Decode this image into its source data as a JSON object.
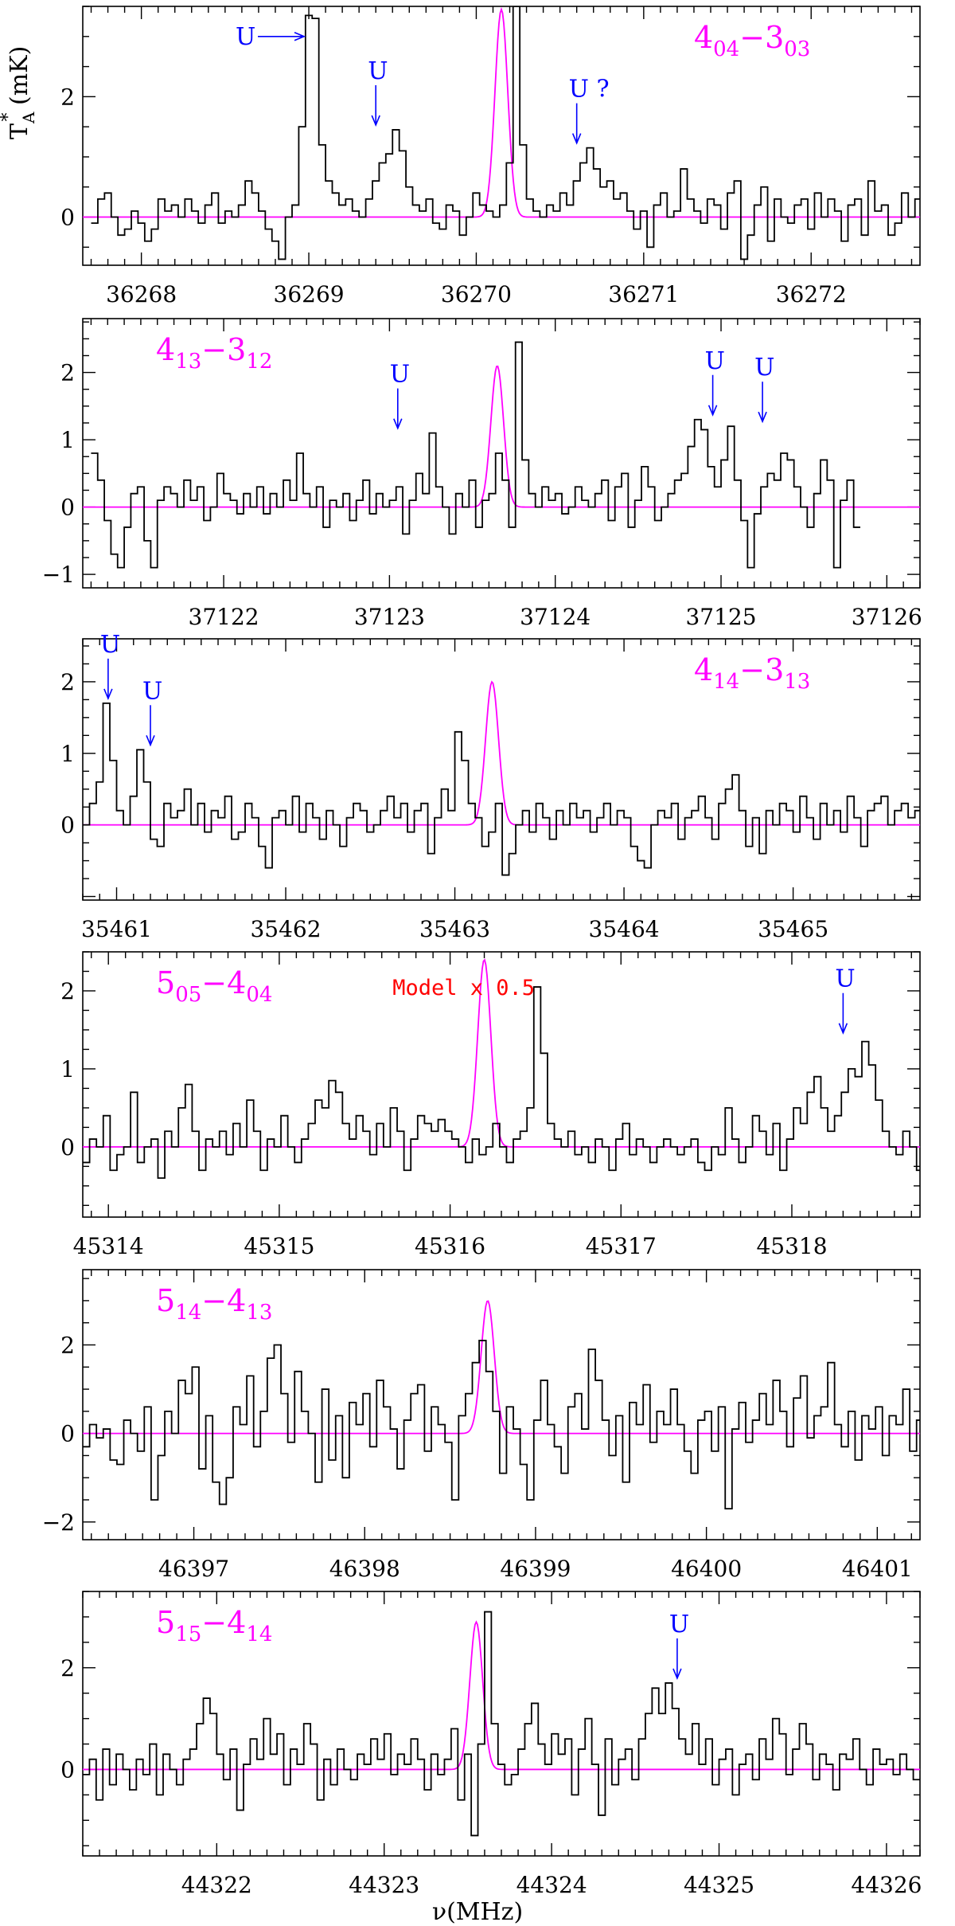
{
  "figure": {
    "ylabel_main": "T",
    "ylabel_sup": "*",
    "ylabel_sub": "A",
    "ylabel_unit": " (mK)",
    "xlabel": "ν(MHz)"
  },
  "colors": {
    "data": "#000000",
    "model": "#ff00ff",
    "annotation": "#0000ff",
    "note": "#ff0000",
    "frame": "#000000"
  },
  "chart_data": [
    {
      "type": "line",
      "transition": {
        "upper": "4",
        "upper_sub": "04",
        "lower": "3",
        "lower_sub": "03"
      },
      "xlim": [
        36267.65,
        36272.65
      ],
      "ylim": [
        -0.8,
        3.5
      ],
      "xticks": [
        36268,
        36269,
        36270,
        36271,
        36272
      ],
      "xtick_labels": [
        "36268",
        "36269",
        "36270",
        "36271",
        "36272"
      ],
      "yticks": [
        0,
        2
      ],
      "ytick_labels": [
        "0",
        "2"
      ],
      "model": {
        "center": 36270.15,
        "amplitude": 3.45,
        "fwhm": 0.09
      },
      "spectrum": {
        "x0": 36267.7,
        "dx": 0.04,
        "values": [
          -0.1,
          0.3,
          0.4,
          0.0,
          -0.3,
          -0.2,
          0.1,
          -0.1,
          -0.4,
          -0.2,
          0.3,
          0.1,
          0.2,
          0.0,
          0.3,
          0.1,
          -0.1,
          0.2,
          0.4,
          -0.1,
          0.1,
          0.0,
          0.2,
          0.6,
          0.4,
          0.1,
          -0.2,
          -0.4,
          -0.7,
          0.0,
          0.2,
          1.5,
          3.35,
          3.3,
          1.2,
          0.6,
          0.4,
          0.2,
          0.3,
          0.1,
          0.0,
          0.3,
          0.6,
          0.9,
          1.05,
          1.45,
          1.1,
          0.5,
          0.2,
          0.1,
          0.3,
          -0.1,
          -0.2,
          0.2,
          0.1,
          -0.3,
          0.0,
          0.4,
          0.2,
          0.1,
          0.0,
          0.2,
          0.9,
          3.5,
          1.2,
          0.3,
          0.1,
          0.0,
          0.2,
          0.1,
          0.4,
          0.2,
          0.6,
          0.9,
          1.15,
          0.8,
          0.5,
          0.6,
          0.3,
          0.4,
          0.1,
          -0.2,
          0.1,
          -0.5,
          0.2,
          0.4,
          0.0,
          0.1,
          0.8,
          0.3,
          0.1,
          -0.1,
          0.3,
          0.2,
          -0.2,
          0.4,
          0.6,
          -0.7,
          -0.3,
          0.2,
          0.5,
          -0.4,
          0.3,
          0.0,
          -0.1,
          0.2,
          0.3,
          -0.2,
          0.4,
          0.0,
          0.3,
          0.1,
          -0.4,
          0.2,
          0.3,
          -0.3,
          0.6,
          0.1,
          0.2,
          -0.3,
          -0.1,
          0.4,
          0.0,
          0.3,
          -0.2,
          0.1,
          0.5,
          0.2,
          -0.3,
          0.2
        ]
      },
      "annotations": [
        {
          "text": "U",
          "x": 36269.0,
          "y": 3.0,
          "arrow": "right"
        },
        {
          "text": "U",
          "x": 36269.4,
          "y": 1.45,
          "arrow": "down"
        },
        {
          "text": "U ?",
          "x": 36270.6,
          "y": 1.15,
          "arrow": "down"
        }
      ],
      "note": null,
      "label_position": "top-right"
    },
    {
      "type": "line",
      "transition": {
        "upper": "4",
        "upper_sub": "13",
        "lower": "3",
        "lower_sub": "12"
      },
      "xlim": [
        37121.15,
        37126.2
      ],
      "ylim": [
        -1.2,
        2.8
      ],
      "xticks": [
        37122,
        37123,
        37124,
        37125,
        37126
      ],
      "xtick_labels": [
        "37122",
        "37123",
        "37124",
        "37125",
        "37126"
      ],
      "yticks": [
        -1,
        0,
        1,
        2
      ],
      "ytick_labels": [
        "−1",
        "0",
        "1",
        "2"
      ],
      "model": {
        "center": 37123.65,
        "amplitude": 2.1,
        "fwhm": 0.09
      },
      "spectrum": {
        "x0": 37121.2,
        "dx": 0.04,
        "values": [
          0.8,
          0.4,
          -0.2,
          -0.7,
          -0.9,
          -0.3,
          0.2,
          0.3,
          -0.5,
          -0.9,
          0.1,
          0.3,
          0.2,
          0.0,
          0.4,
          0.1,
          0.3,
          -0.2,
          0.0,
          0.5,
          0.2,
          0.1,
          -0.1,
          0.2,
          0.0,
          0.3,
          -0.1,
          0.2,
          0.0,
          0.4,
          0.1,
          0.8,
          0.2,
          0.0,
          0.3,
          -0.3,
          0.1,
          0.0,
          0.2,
          -0.2,
          0.1,
          0.4,
          -0.1,
          0.2,
          0.0,
          0.1,
          0.3,
          -0.4,
          0.1,
          0.5,
          0.2,
          1.1,
          0.3,
          0.0,
          -0.4,
          0.2,
          0.0,
          0.4,
          -0.3,
          0.1,
          0.2,
          0.8,
          0.4,
          -0.3,
          2.45,
          0.7,
          0.2,
          0.0,
          0.3,
          0.1,
          0.2,
          -0.1,
          0.0,
          0.3,
          0.1,
          0.0,
          0.2,
          0.4,
          -0.2,
          0.3,
          0.5,
          -0.3,
          0.1,
          0.6,
          0.3,
          -0.2,
          0.0,
          0.2,
          0.4,
          0.5,
          0.9,
          1.3,
          1.15,
          0.6,
          0.3,
          0.7,
          1.2,
          0.4,
          -0.2,
          -0.9,
          -0.1,
          0.3,
          0.5,
          0.4,
          0.8,
          0.7,
          0.3,
          0.0,
          -0.3,
          0.2,
          0.7,
          0.4,
          -0.9,
          0.1,
          0.4,
          -0.3
        ]
      },
      "annotations": [
        {
          "text": "U",
          "x": 37123.05,
          "y": 1.1,
          "arrow": "down"
        },
        {
          "text": "U",
          "x": 37124.95,
          "y": 1.3,
          "arrow": "down"
        },
        {
          "text": "U",
          "x": 37125.25,
          "y": 1.2,
          "arrow": "down"
        }
      ],
      "note": null,
      "label_position": "top-left"
    },
    {
      "type": "line",
      "transition": {
        "upper": "4",
        "upper_sub": "14",
        "lower": "3",
        "lower_sub": "13"
      },
      "xlim": [
        35460.8,
        35465.75
      ],
      "ylim": [
        -1.05,
        2.6
      ],
      "xticks": [
        35461,
        35462,
        35463,
        35464,
        35465
      ],
      "xtick_labels": [
        "35461",
        "35462",
        "35463",
        "35464",
        "35465"
      ],
      "yticks": [
        0,
        1,
        2
      ],
      "ytick_labels": [
        "0",
        "1",
        "2"
      ],
      "model": {
        "center": 35463.22,
        "amplitude": 2.0,
        "fwhm": 0.09
      },
      "spectrum": {
        "x0": 35460.8,
        "dx": 0.04,
        "values": [
          0.0,
          0.3,
          0.6,
          1.7,
          0.9,
          0.2,
          0.0,
          0.4,
          1.05,
          0.6,
          -0.2,
          -0.3,
          0.3,
          0.1,
          0.2,
          0.5,
          0.0,
          0.3,
          -0.1,
          0.2,
          0.1,
          0.4,
          -0.2,
          -0.1,
          0.3,
          0.1,
          -0.3,
          -0.6,
          0.1,
          0.2,
          0.0,
          0.4,
          -0.1,
          0.3,
          0.1,
          -0.2,
          0.2,
          0.0,
          -0.3,
          0.1,
          0.3,
          0.2,
          -0.1,
          0.0,
          0.2,
          0.4,
          0.1,
          0.3,
          -0.1,
          0.2,
          0.3,
          -0.4,
          0.1,
          0.5,
          0.2,
          1.3,
          0.9,
          0.3,
          0.1,
          -0.3,
          -0.1,
          0.3,
          -0.7,
          -0.4,
          0.0,
          0.2,
          -0.1,
          0.3,
          0.1,
          -0.2,
          0.2,
          0.0,
          0.3,
          0.1,
          0.2,
          -0.1,
          0.1,
          0.3,
          0.0,
          0.2,
          0.1,
          -0.3,
          -0.5,
          -0.6,
          0.0,
          0.2,
          0.1,
          0.3,
          -0.2,
          0.1,
          0.2,
          0.4,
          0.1,
          -0.2,
          0.3,
          0.5,
          0.7,
          0.2,
          -0.3,
          0.1,
          -0.4,
          0.2,
          0.0,
          0.3,
          0.2,
          -0.1,
          0.4,
          0.1,
          -0.2,
          0.3,
          0.0,
          0.2,
          -0.1,
          0.4,
          0.1,
          -0.3,
          0.2,
          0.3,
          0.4,
          0.0,
          0.2,
          0.3,
          0.1,
          0.2,
          0.0,
          0.3
        ]
      },
      "annotations": [
        {
          "text": "U",
          "x": 35460.95,
          "y": 1.7,
          "arrow": "down"
        },
        {
          "text": "U",
          "x": 35461.2,
          "y": 1.05,
          "arrow": "down"
        }
      ],
      "note": null,
      "label_position": "top-right"
    },
    {
      "type": "line",
      "transition": {
        "upper": "5",
        "upper_sub": "05",
        "lower": "4",
        "lower_sub": "04"
      },
      "xlim": [
        45313.85,
        45318.75
      ],
      "ylim": [
        -0.9,
        2.5
      ],
      "xticks": [
        45314,
        45315,
        45316,
        45317,
        45318
      ],
      "xtick_labels": [
        "45314",
        "45315",
        "45316",
        "45317",
        "45318"
      ],
      "yticks": [
        0,
        1,
        2
      ],
      "ytick_labels": [
        "0",
        "1",
        "2"
      ],
      "model": {
        "center": 45316.2,
        "amplitude": 2.4,
        "fwhm": 0.09
      },
      "spectrum": {
        "x0": 45313.85,
        "dx": 0.04,
        "values": [
          -0.2,
          0.1,
          0.0,
          0.4,
          -0.3,
          -0.1,
          0.0,
          0.7,
          -0.2,
          0.0,
          0.1,
          -0.4,
          0.2,
          0.0,
          0.5,
          0.8,
          0.2,
          -0.3,
          0.1,
          0.0,
          0.2,
          -0.1,
          0.3,
          0.0,
          0.6,
          0.2,
          -0.3,
          0.1,
          0.0,
          0.4,
          0.0,
          -0.2,
          0.1,
          0.3,
          0.6,
          0.5,
          0.85,
          0.7,
          0.3,
          0.1,
          0.4,
          0.2,
          -0.1,
          0.3,
          0.0,
          0.5,
          0.2,
          -0.3,
          0.1,
          0.4,
          0.3,
          0.2,
          0.35,
          0.2,
          0.1,
          0.0,
          -0.2,
          0.1,
          -0.1,
          0.0,
          0.3,
          0.0,
          -0.2,
          0.1,
          0.2,
          0.5,
          2.05,
          1.2,
          0.3,
          0.1,
          0.0,
          0.2,
          -0.1,
          0.0,
          -0.2,
          0.1,
          0.0,
          -0.3,
          0.1,
          0.3,
          -0.1,
          0.1,
          0.0,
          -0.2,
          0.0,
          0.1,
          0.0,
          -0.1,
          0.0,
          0.1,
          -0.2,
          -0.3,
          0.0,
          -0.1,
          0.5,
          0.1,
          -0.2,
          0.0,
          0.4,
          0.2,
          -0.1,
          0.3,
          -0.3,
          0.1,
          0.5,
          0.3,
          0.7,
          0.9,
          0.5,
          0.2,
          0.4,
          0.7,
          1.0,
          0.9,
          1.35,
          1.05,
          0.6,
          0.2,
          0.0,
          -0.1,
          0.2,
          0.0,
          -0.3,
          0.1
        ]
      },
      "annotations": [
        {
          "text": "U",
          "x": 45318.3,
          "y": 1.4,
          "arrow": "down"
        }
      ],
      "note": "Model x 0.5",
      "label_position": "top-left"
    },
    {
      "type": "line",
      "transition": {
        "upper": "5",
        "upper_sub": "14",
        "lower": "4",
        "lower_sub": "13"
      },
      "xlim": [
        46396.35,
        46401.25
      ],
      "ylim": [
        -2.4,
        3.7
      ],
      "xticks": [
        46397,
        46398,
        46399,
        46400,
        46401
      ],
      "xtick_labels": [
        "46397",
        "46398",
        "46399",
        "46400",
        "46401"
      ],
      "yticks": [
        -2,
        0,
        2
      ],
      "ytick_labels": [
        "−2",
        "0",
        "2"
      ],
      "model": {
        "center": 46398.72,
        "amplitude": 3.0,
        "fwhm": 0.09
      },
      "spectrum": {
        "x0": 46396.35,
        "dx": 0.04,
        "values": [
          -0.3,
          0.2,
          -0.1,
          0.1,
          -0.6,
          -0.7,
          0.3,
          0.0,
          -0.4,
          0.6,
          -1.5,
          -0.5,
          0.5,
          0.0,
          1.2,
          0.9,
          1.5,
          -0.8,
          0.4,
          -1.1,
          -1.6,
          -1.0,
          0.6,
          0.2,
          1.3,
          -0.3,
          0.5,
          1.7,
          2.0,
          0.9,
          -0.2,
          1.4,
          0.5,
          0.0,
          -1.1,
          1.0,
          -0.6,
          0.4,
          -1.0,
          0.7,
          0.2,
          0.9,
          -0.3,
          1.2,
          0.6,
          0.1,
          -0.8,
          0.3,
          0.9,
          1.1,
          -0.4,
          0.6,
          0.2,
          -0.2,
          -1.5,
          0.4,
          0.9,
          1.6,
          2.1,
          1.4,
          0.5,
          -0.9,
          0.6,
          0.1,
          -0.7,
          -1.5,
          0.3,
          1.2,
          0.2,
          -0.3,
          -0.9,
          0.6,
          0.9,
          0.1,
          1.9,
          1.2,
          0.3,
          -0.5,
          0.4,
          -1.1,
          0.7,
          0.2,
          1.1,
          -0.2,
          0.5,
          0.2,
          1.0,
          0.2,
          -0.4,
          -0.9,
          0.3,
          0.5,
          -0.4,
          0.6,
          -1.7,
          0.1,
          0.7,
          -0.2,
          0.3,
          0.9,
          0.2,
          1.2,
          0.5,
          -0.3,
          0.8,
          1.3,
          -0.1,
          0.4,
          0.6,
          1.6,
          0.2,
          -0.3,
          0.5,
          -0.6,
          0.4,
          0.1,
          0.6,
          -0.5,
          0.4,
          0.2,
          1.0,
          -0.4,
          0.3
        ]
      },
      "annotations": [],
      "note": null,
      "label_position": "top-left"
    },
    {
      "type": "line",
      "transition": {
        "upper": "5",
        "upper_sub": "15",
        "lower": "4",
        "lower_sub": "14"
      },
      "xlim": [
        44321.2,
        44326.2
      ],
      "ylim": [
        -1.7,
        3.5
      ],
      "xticks": [
        44322,
        44323,
        44324,
        44325,
        44326
      ],
      "xtick_labels": [
        "44322",
        "44323",
        "44324",
        "44325",
        "44326"
      ],
      "yticks": [
        0,
        2
      ],
      "ytick_labels": [
        "0",
        "2"
      ],
      "model": {
        "center": 44323.55,
        "amplitude": 2.9,
        "fwhm": 0.09
      },
      "spectrum": {
        "x0": 44321.2,
        "dx": 0.04,
        "values": [
          -0.1,
          0.2,
          -0.6,
          0.4,
          -0.3,
          0.3,
          0.0,
          -0.4,
          0.2,
          -0.1,
          0.5,
          -0.5,
          0.3,
          0.0,
          -0.3,
          0.2,
          0.4,
          0.9,
          1.4,
          1.1,
          0.3,
          -0.2,
          0.4,
          -0.8,
          0.1,
          0.6,
          0.2,
          1.0,
          0.3,
          0.7,
          -0.3,
          0.4,
          0.1,
          0.9,
          0.5,
          -0.6,
          0.2,
          -0.3,
          0.4,
          0.0,
          -0.2,
          0.3,
          0.1,
          0.6,
          0.2,
          0.7,
          -0.1,
          0.3,
          0.1,
          0.6,
          0.2,
          -0.4,
          0.3,
          -0.1,
          0.2,
          0.8,
          -0.6,
          0.3,
          -1.3,
          0.5,
          3.1,
          0.9,
          0.1,
          -0.3,
          -0.1,
          0.4,
          0.9,
          1.3,
          0.5,
          0.1,
          0.7,
          0.3,
          0.6,
          -0.5,
          0.4,
          1.0,
          0.1,
          -0.9,
          0.6,
          -0.3,
          0.2,
          0.4,
          -0.2,
          0.6,
          1.1,
          1.6,
          1.1,
          1.7,
          1.2,
          0.6,
          0.3,
          0.9,
          0.1,
          0.6,
          -0.3,
          0.2,
          0.4,
          -0.5,
          0.1,
          0.3,
          -0.2,
          0.6,
          0.2,
          1.0,
          0.7,
          -0.1,
          0.4,
          0.9,
          0.5,
          -0.2,
          0.3,
          0.1,
          -0.4,
          0.3,
          0.2,
          0.6,
          0.0,
          -0.3,
          0.4,
          0.1,
          0.2,
          -0.1,
          0.3,
          0.0,
          -0.2
        ]
      },
      "annotations": [
        {
          "text": "U",
          "x": 44324.75,
          "y": 1.7,
          "arrow": "down"
        }
      ],
      "note": null,
      "label_position": "top-left"
    }
  ]
}
